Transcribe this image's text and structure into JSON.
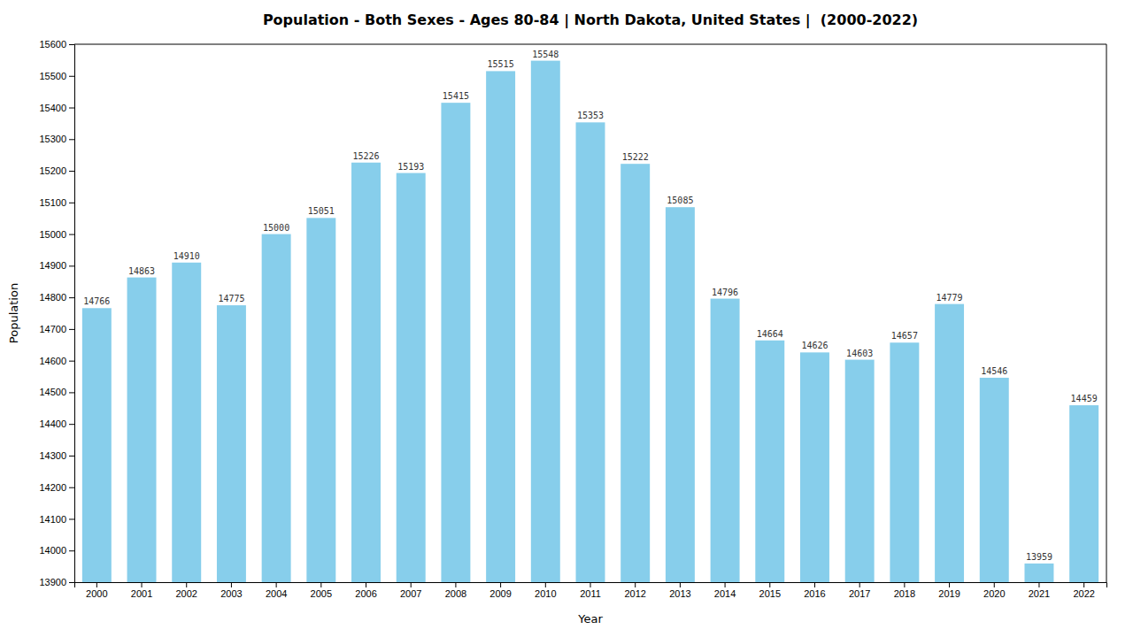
{
  "chart_data": {
    "type": "bar",
    "title": "Population - Both Sexes - Ages 80-84 | North Dakota, United States |  (2000-2022)",
    "xlabel": "Year",
    "ylabel": "Population",
    "categories": [
      "2000",
      "2001",
      "2002",
      "2003",
      "2004",
      "2005",
      "2006",
      "2007",
      "2008",
      "2009",
      "2010",
      "2011",
      "2012",
      "2013",
      "2014",
      "2015",
      "2016",
      "2017",
      "2018",
      "2019",
      "2020",
      "2021",
      "2022"
    ],
    "values": [
      14766,
      14863,
      14910,
      14775,
      15000,
      15051,
      15226,
      15193,
      15415,
      15515,
      15548,
      15353,
      15222,
      15085,
      14796,
      14664,
      14626,
      14603,
      14657,
      14779,
      14546,
      13959,
      14459
    ],
    "color": "#87CEEB",
    "ylim": [
      13900,
      15600
    ],
    "yticks": [
      13900,
      14000,
      14100,
      14200,
      14300,
      14400,
      14500,
      14600,
      14700,
      14800,
      14900,
      15000,
      15100,
      15200,
      15300,
      15400,
      15500,
      15600
    ],
    "grid": false,
    "data_labels": true
  }
}
